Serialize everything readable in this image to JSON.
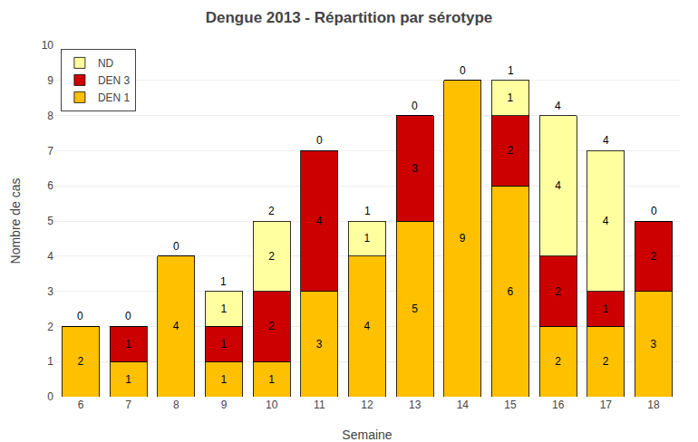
{
  "chart_data": {
    "type": "bar",
    "title": "Dengue 2013 - Répartition par sérotype",
    "xlabel": "Semaine",
    "ylabel": "Nombre de cas",
    "categories": [
      "6",
      "7",
      "8",
      "9",
      "10",
      "11",
      "12",
      "13",
      "14",
      "15",
      "16",
      "17",
      "18"
    ],
    "series": [
      {
        "name": "DEN 1",
        "color": "#FFC000",
        "values": [
          2,
          1,
          4,
          1,
          1,
          3,
          4,
          5,
          9,
          6,
          2,
          2,
          3
        ]
      },
      {
        "name": "DEN 3",
        "color": "#CC0000",
        "values": [
          0,
          1,
          0,
          1,
          2,
          4,
          0,
          3,
          0,
          2,
          2,
          1,
          2
        ]
      },
      {
        "name": "ND",
        "color": "#FFFFA0",
        "values": [
          0,
          0,
          0,
          1,
          2,
          0,
          1,
          0,
          0,
          1,
          4,
          4,
          0
        ]
      }
    ],
    "stacked": true,
    "data_labels": true,
    "ylim": [
      0,
      10
    ],
    "yticks": [
      0,
      1,
      2,
      3,
      4,
      5,
      6,
      7,
      8,
      9,
      10
    ],
    "grid": true,
    "legend": "upper left"
  }
}
